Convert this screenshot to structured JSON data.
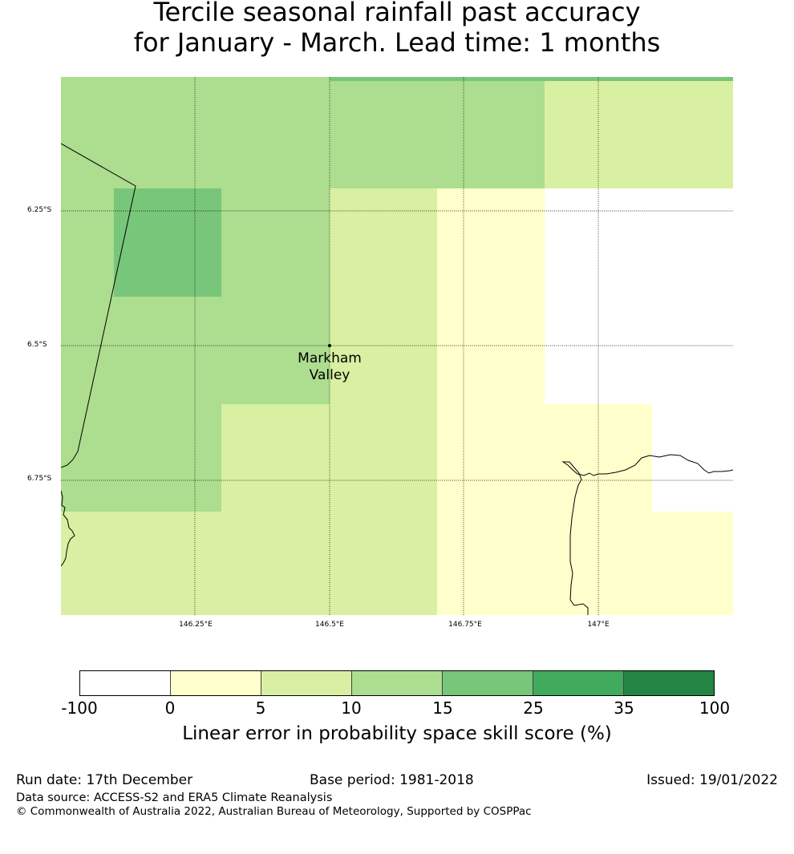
{
  "title_line1": "Tercile seasonal rainfall past accuracy",
  "title_line2": "for January - March. Lead time: 1 months",
  "map": {
    "latitudes": [
      "6.25°S",
      "6.5°S",
      "6.75°S"
    ],
    "longitudes": [
      "146.25°E",
      "146.5°E",
      "146.75°E",
      "147°E"
    ],
    "place": {
      "name_line1": "Markham",
      "name_line2": "Valley"
    }
  },
  "colors": {
    "white": "#ffffff",
    "c0_5": "#ffffcc",
    "c5_10": "#d9f0a3",
    "c10_15": "#addd8e",
    "c15_25": "#78c679",
    "c25_35": "#41ab5d",
    "c35_100": "#238443"
  },
  "colorbar": {
    "ticks": [
      "-100",
      "0",
      "5",
      "10",
      "15",
      "25",
      "35",
      "100"
    ],
    "label": "Linear error in probability space skill score (%)"
  },
  "footer": {
    "run_date": "Run date: 17th December",
    "base_period": "Base period: 1981-2018",
    "issued": "Issued: 19/01/2022",
    "data_source": "Data source: ACCESS-S2 and ERA5 Climate Reanalysis",
    "copyright": "© Commonwealth of Australia 2022, Australian Bureau of Meteorology, Supported by COSPPac"
  }
}
